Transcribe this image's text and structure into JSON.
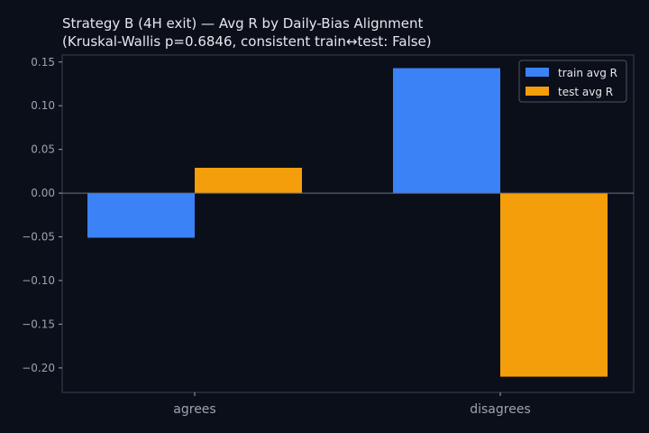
{
  "chart_data": {
    "type": "bar",
    "title_line1": "Strategy B (4H exit) — Avg R by Daily-Bias Alignment",
    "title_line2": "(Kruskal-Wallis p=0.6846, consistent train↔test: False)",
    "categories": [
      "agrees",
      "disagrees"
    ],
    "series": [
      {
        "name": "train avg R",
        "values": [
          -0.051,
          0.143
        ],
        "color": "#3b82f6"
      },
      {
        "name": "test avg R",
        "values": [
          0.029,
          -0.21
        ],
        "color": "#f59e0b"
      }
    ],
    "ylim": [
      -0.228,
      0.158
    ],
    "yticks": [
      0.15,
      0.1,
      0.05,
      0.0,
      -0.05,
      -0.1,
      -0.15,
      -0.2
    ],
    "ytick_labels": [
      "0.15",
      "0.10",
      "0.05",
      "0.00",
      "−0.05",
      "−0.10",
      "−0.15",
      "−0.20"
    ],
    "xlabel": "",
    "ylabel": "",
    "grid": false,
    "legend_position": "top-right",
    "colors": {
      "background": "#0b0f19",
      "axis": "#374151",
      "text": "#e5e7eb",
      "tick": "#9ca3af"
    }
  }
}
